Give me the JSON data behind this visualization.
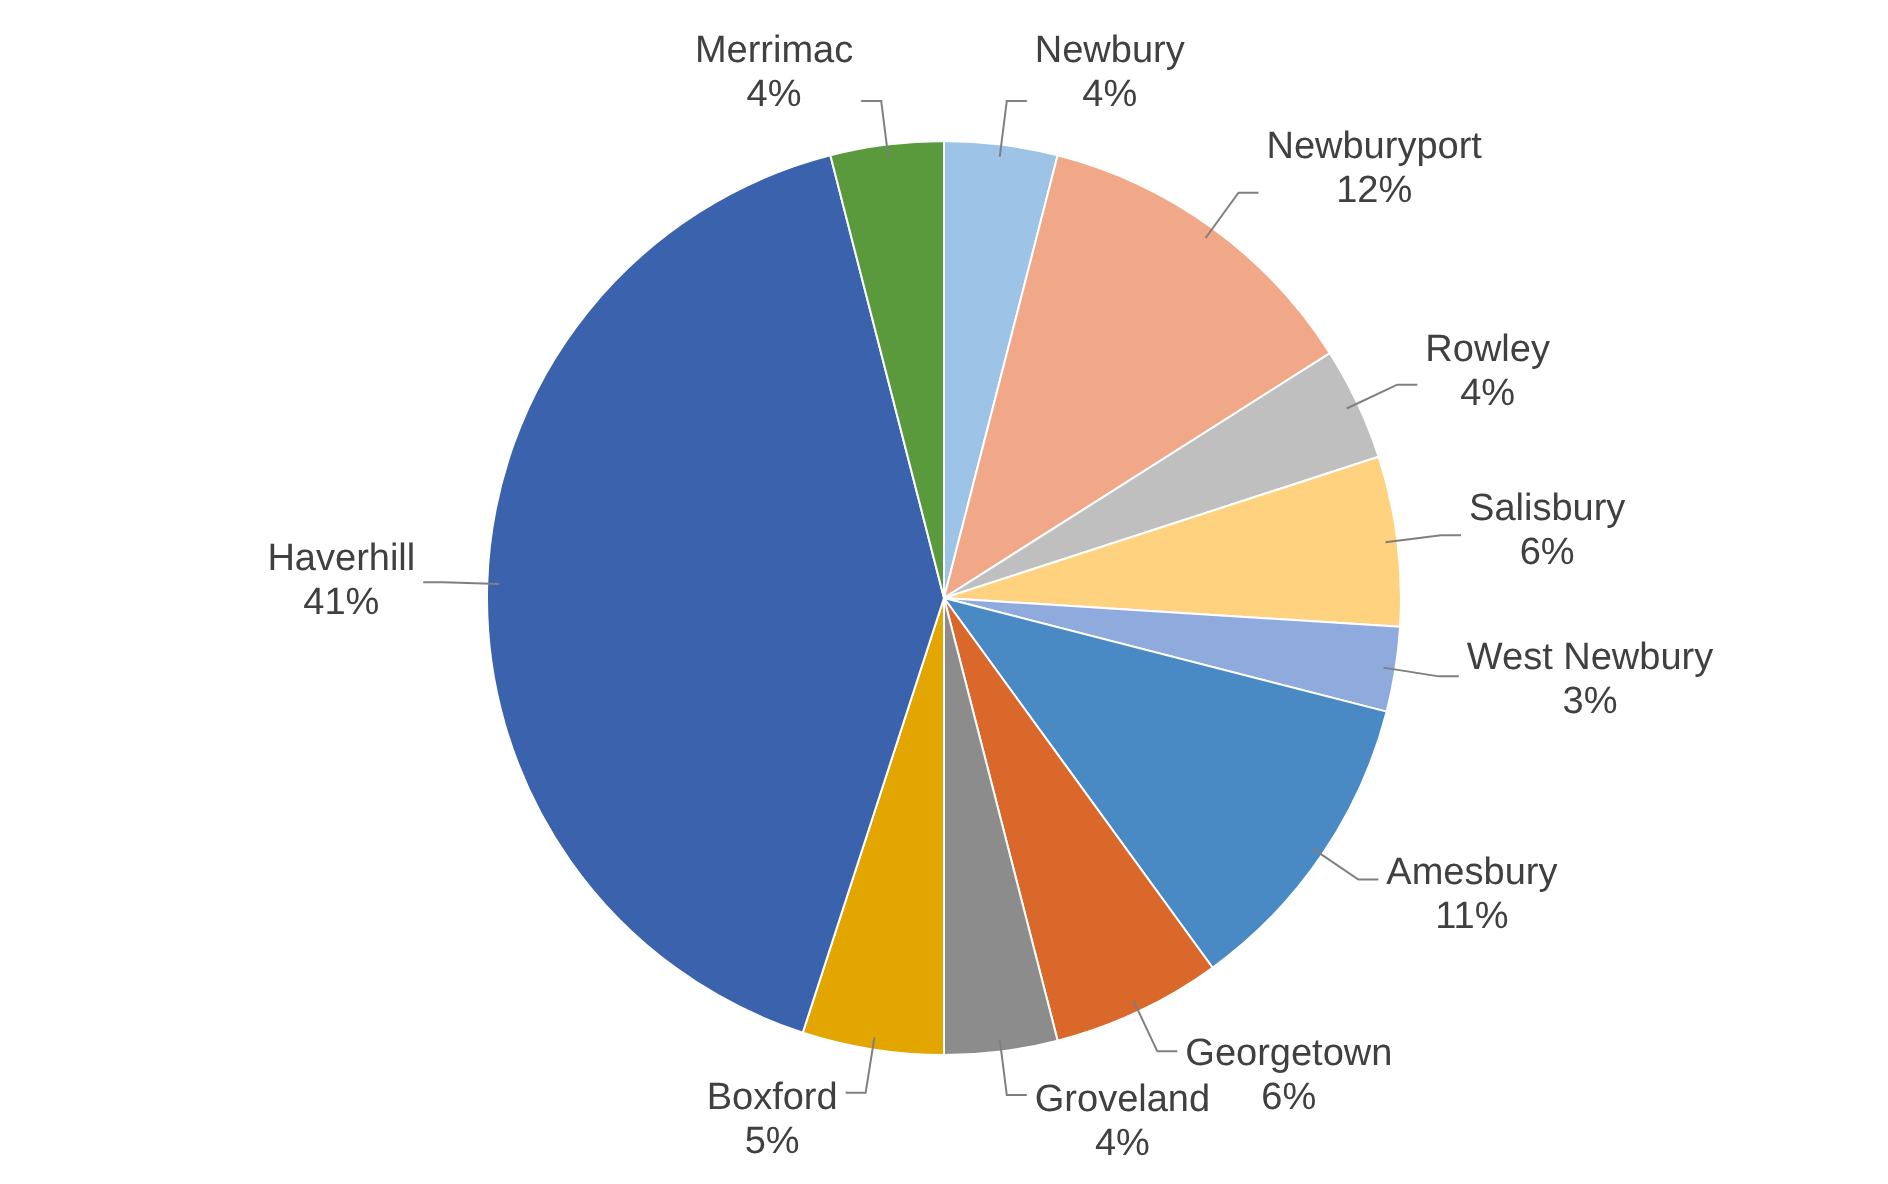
{
  "chart_data": {
    "type": "pie",
    "categories": [
      "Newbury",
      "Newburyport",
      "Rowley",
      "Salisbury",
      "West Newbury",
      "Amesbury",
      "Georgetown",
      "Groveland",
      "Boxford",
      "Haverhill",
      "Merrimac"
    ],
    "values": [
      4,
      12,
      4,
      6,
      3,
      11,
      6,
      4,
      5,
      41,
      4
    ],
    "value_labels": [
      "4%",
      "12%",
      "4%",
      "6%",
      "3%",
      "11%",
      "6%",
      "4%",
      "5%",
      "41%",
      "4%"
    ],
    "colors": [
      "#9dc3e6",
      "#f0a889",
      "#bfbfbf",
      "#ffd280",
      "#8faadc",
      "#4a8ac4",
      "#d9682a",
      "#8c8c8c",
      "#e3a600",
      "#3a62ad",
      "#5b9a3c"
    ],
    "legend": false
  }
}
